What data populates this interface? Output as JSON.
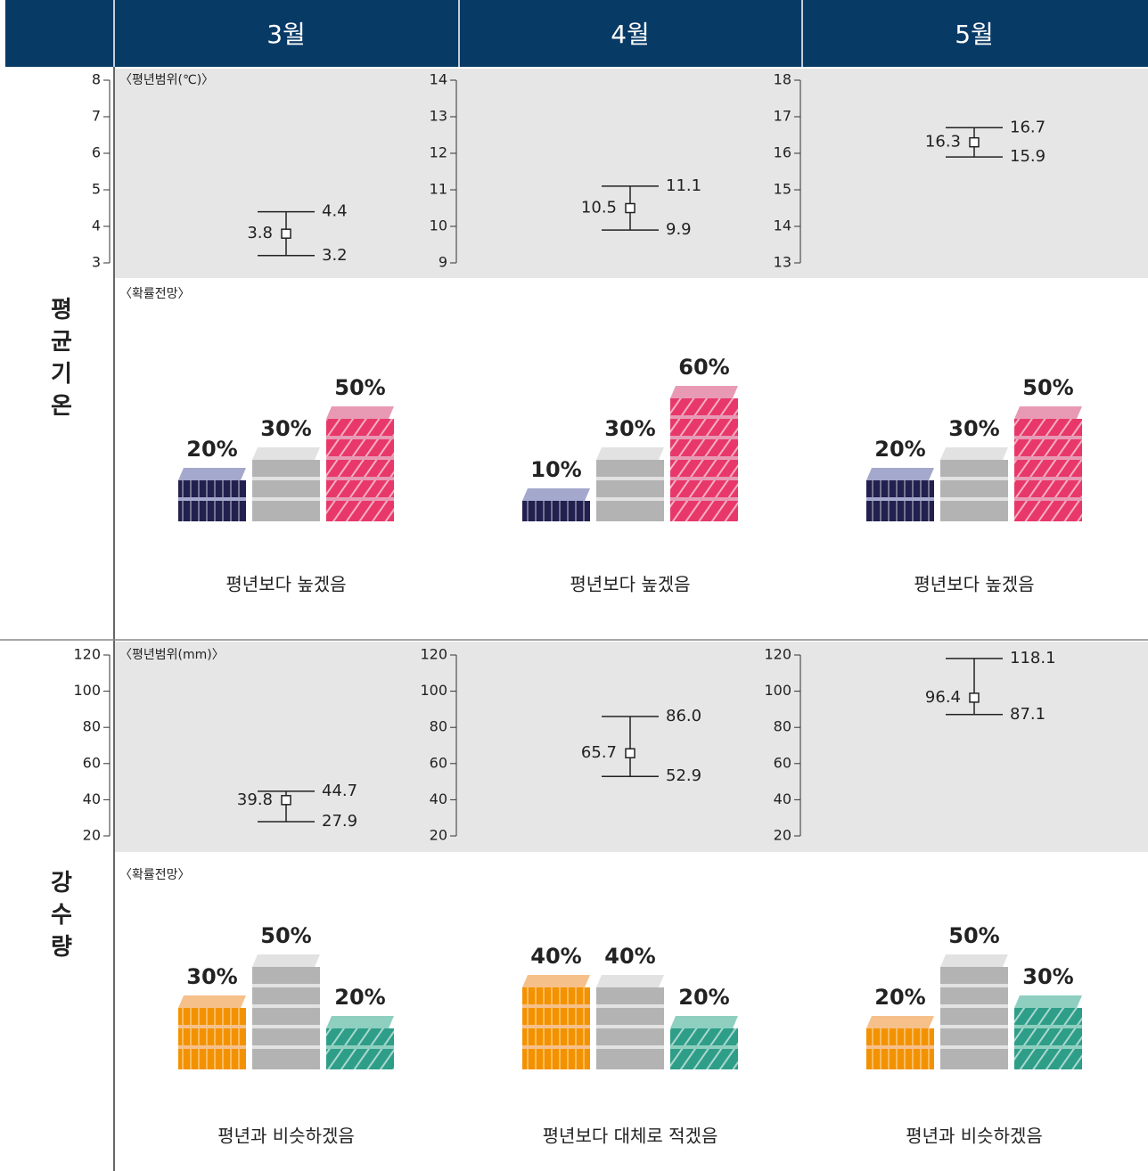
{
  "header": {
    "columns": [
      "3월",
      "4월",
      "5월"
    ]
  },
  "sections": [
    {
      "label": "평균기온",
      "range_label": "〈평년범위(℃)〉",
      "prob_label": "〈확률전망〉",
      "colors": [
        "#22204f",
        "#b3b3b3",
        "#e8386a"
      ],
      "top_colors": [
        "#a3a8cc",
        "#e2e2e2",
        "#e89ab5"
      ],
      "ranges": [
        {
          "ylim": [
            3,
            8
          ],
          "yticks": [
            3,
            4,
            5,
            6,
            7,
            8
          ],
          "values": [
            3.2,
            3.8,
            4.4
          ]
        },
        {
          "ylim": [
            9,
            14
          ],
          "yticks": [
            9,
            10,
            11,
            12,
            13,
            14
          ],
          "values": [
            9.9,
            10.5,
            11.1
          ]
        },
        {
          "ylim": [
            13,
            18
          ],
          "yticks": [
            13,
            14,
            15,
            16,
            17,
            18
          ],
          "values": [
            15.9,
            16.3,
            16.7
          ]
        }
      ],
      "probs": [
        {
          "values": [
            20,
            30,
            50
          ],
          "value_labels": [
            "20%",
            "30%",
            "50%"
          ],
          "outlook": "평년보다 높겠음"
        },
        {
          "values": [
            10,
            30,
            60
          ],
          "value_labels": [
            "10%",
            "30%",
            "60%"
          ],
          "outlook": "평년보다 높겠음"
        },
        {
          "values": [
            20,
            30,
            50
          ],
          "value_labels": [
            "20%",
            "30%",
            "50%"
          ],
          "outlook": "평년보다 높겠음"
        }
      ]
    },
    {
      "label": "강수량",
      "range_label": "〈평년범위(mm)〉",
      "prob_label": "〈확률전망〉",
      "colors": [
        "#f39200",
        "#b3b3b3",
        "#2e9e88"
      ],
      "top_colors": [
        "#f6c08a",
        "#e2e2e2",
        "#8ecfc0"
      ],
      "ranges": [
        {
          "ylim": [
            20,
            120
          ],
          "yticks": [
            20,
            40,
            60,
            80,
            100,
            120
          ],
          "values": [
            27.9,
            39.8,
            44.7
          ]
        },
        {
          "ylim": [
            20,
            120
          ],
          "yticks": [
            20,
            40,
            60,
            80,
            100,
            120
          ],
          "values": [
            52.9,
            65.7,
            86
          ],
          "value_labels": [
            "52.9",
            "65.7",
            "86.0"
          ]
        },
        {
          "ylim": [
            20,
            120
          ],
          "yticks": [
            20,
            40,
            60,
            80,
            100,
            120
          ],
          "values": [
            87.1,
            96.4,
            118.1
          ]
        }
      ],
      "probs": [
        {
          "values": [
            30,
            50,
            20
          ],
          "value_labels": [
            "30%",
            "50%",
            "20%"
          ],
          "outlook": "평년과 비슷하겠음"
        },
        {
          "values": [
            40,
            40,
            20
          ],
          "value_labels": [
            "40%",
            "40%",
            "20%"
          ],
          "outlook": "평년보다 대체로 적겠음"
        },
        {
          "values": [
            20,
            50,
            30
          ],
          "value_labels": [
            "20%",
            "50%",
            "30%"
          ],
          "outlook": "평년과 비슷하겠음"
        }
      ]
    }
  ]
}
